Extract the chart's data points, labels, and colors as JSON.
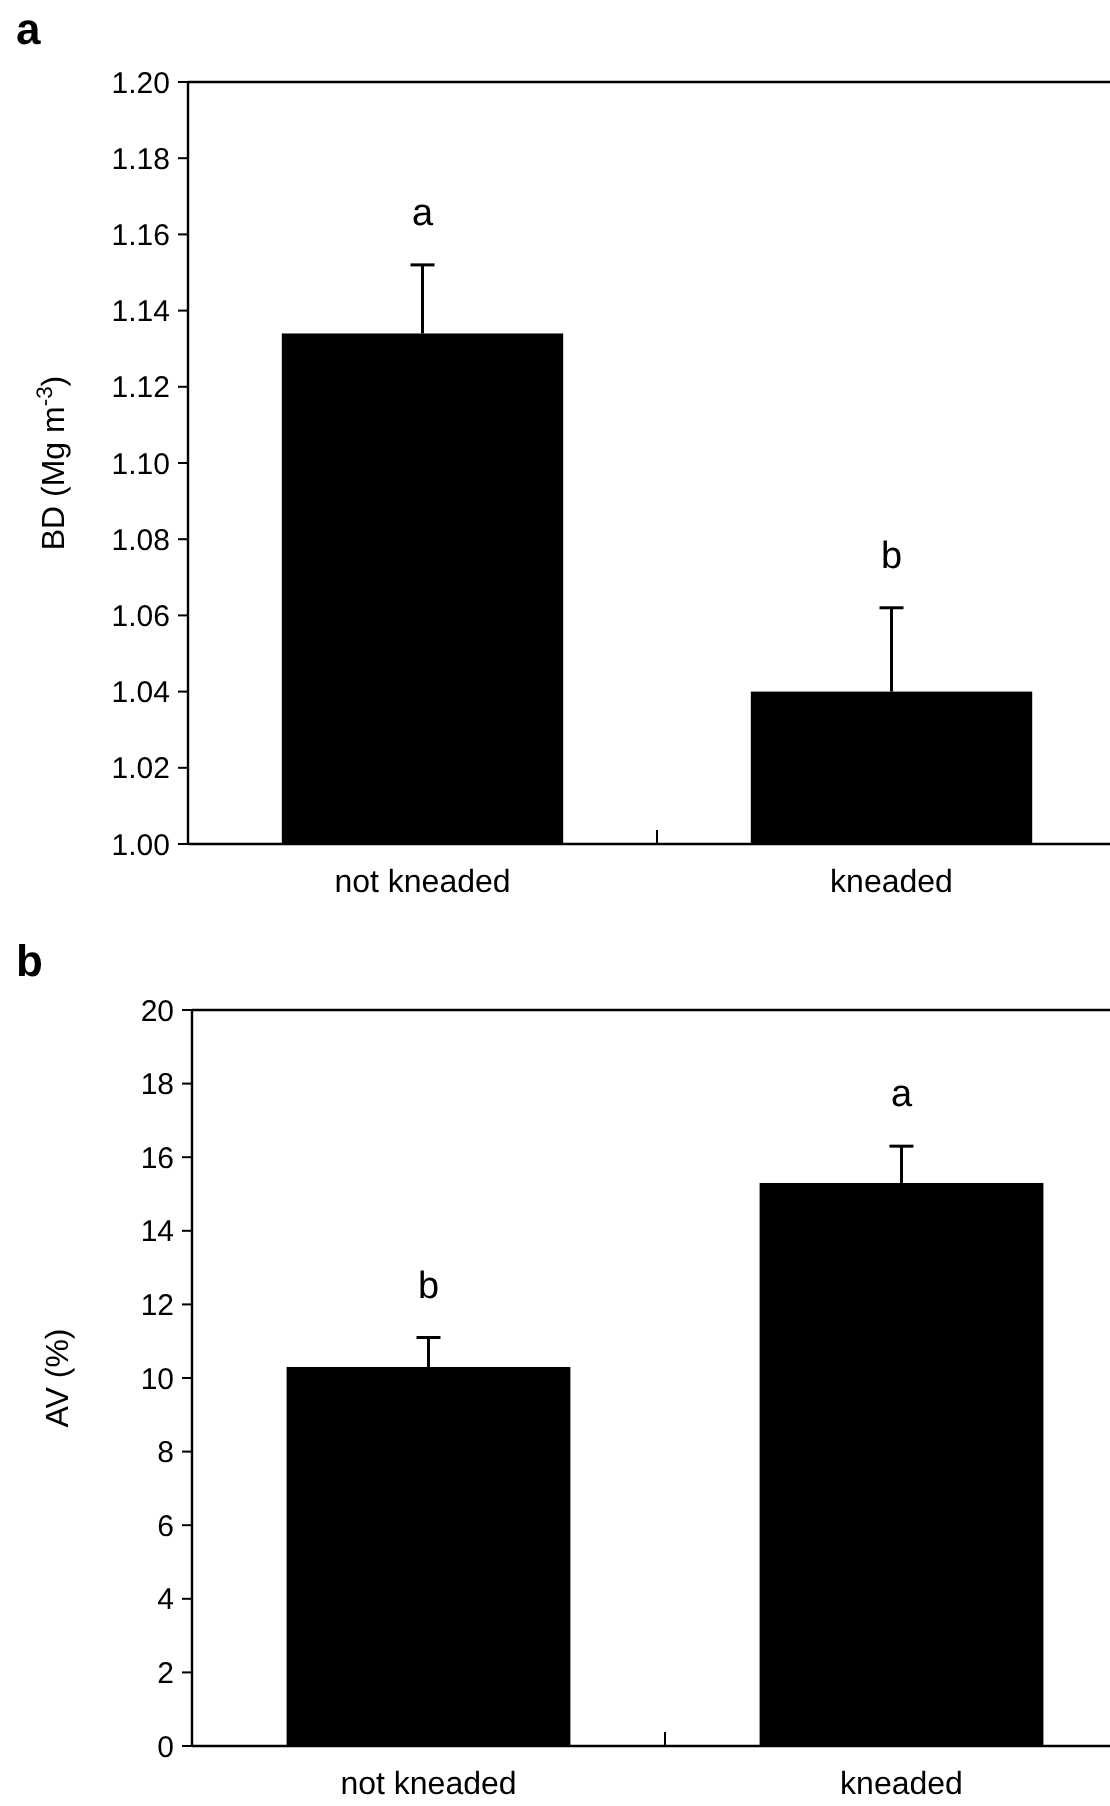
{
  "chart_data": [
    {
      "type": "bar",
      "title": "a",
      "categories": [
        "not kneaded",
        "kneaded"
      ],
      "values": [
        1.134,
        1.04
      ],
      "errors": [
        0.018,
        0.022
      ],
      "color": "#000000",
      "ylabel": "BD (Mg m$^{-3}$)",
      "ylim": [
        1.0,
        1.2
      ],
      "yticks": [
        {
          "value": 1.0,
          "label": "1.00"
        },
        {
          "value": 1.02,
          "label": "1.02"
        },
        {
          "value": 1.04,
          "label": "1.04"
        },
        {
          "value": 1.06,
          "label": "1.06"
        },
        {
          "value": 1.08,
          "label": "1.08"
        },
        {
          "value": 1.1,
          "label": "1.10"
        },
        {
          "value": 1.12,
          "label": "1.12"
        },
        {
          "value": 1.14,
          "label": "1.14"
        },
        {
          "value": 1.16,
          "label": "1.16"
        },
        {
          "value": 1.18,
          "label": "1.18"
        },
        {
          "value": 1.2,
          "label": "1.20"
        }
      ],
      "grid": false,
      "annotations": [
        "a",
        "b"
      ]
    },
    {
      "type": "bar",
      "title": "b",
      "categories": [
        "not kneaded",
        "kneaded"
      ],
      "values": [
        10.3,
        15.3
      ],
      "errors": [
        0.8,
        1.0
      ],
      "color": "#000000",
      "ylabel": "AV (%)",
      "ylim": [
        0,
        20
      ],
      "yticks": [
        0,
        2,
        4,
        6,
        8,
        10,
        12,
        14,
        16,
        18,
        20
      ],
      "grid": false,
      "annotations": [
        "b",
        "a"
      ]
    }
  ]
}
